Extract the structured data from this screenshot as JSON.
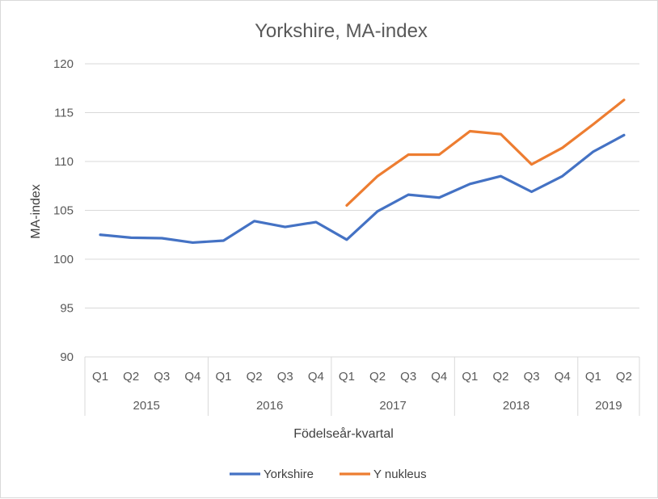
{
  "chart_data": {
    "type": "line",
    "title": "Yorkshire, MA-index",
    "xlabel": "Födelseår-kvartal",
    "ylabel": "MA-index",
    "ylim": [
      90,
      120
    ],
    "yticks": [
      90,
      95,
      100,
      105,
      110,
      115,
      120
    ],
    "grid": true,
    "legend_position": "bottom",
    "quarters": [
      "Q1",
      "Q2",
      "Q3",
      "Q4",
      "Q1",
      "Q2",
      "Q3",
      "Q4",
      "Q1",
      "Q2",
      "Q3",
      "Q4",
      "Q1",
      "Q2",
      "Q3",
      "Q4",
      "Q1",
      "Q2"
    ],
    "years": [
      {
        "label": "2015",
        "count": 4
      },
      {
        "label": "2016",
        "count": 4
      },
      {
        "label": "2017",
        "count": 4
      },
      {
        "label": "2018",
        "count": 4
      },
      {
        "label": "2019",
        "count": 2
      }
    ],
    "series": [
      {
        "name": "Yorkshire",
        "color": "#4472c4",
        "values": [
          102.5,
          102.2,
          102.15,
          101.7,
          101.9,
          103.9,
          103.3,
          103.8,
          102.0,
          104.9,
          106.6,
          106.3,
          107.7,
          108.5,
          106.9,
          108.5,
          111.0,
          112.7
        ]
      },
      {
        "name": "Y nukleus",
        "color": "#ed7d31",
        "values": [
          null,
          null,
          null,
          null,
          null,
          null,
          null,
          null,
          105.5,
          108.5,
          110.7,
          110.7,
          113.1,
          112.8,
          109.7,
          111.4,
          113.8,
          116.3
        ]
      }
    ]
  }
}
